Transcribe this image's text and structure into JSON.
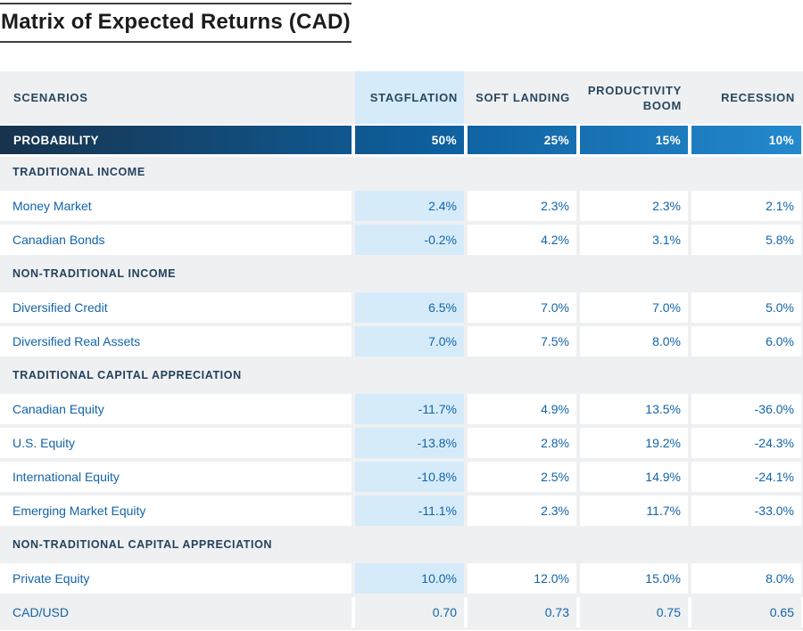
{
  "title": "Matrix of Expected Returns (CAD)",
  "colors": {
    "navy_text": "#28475f",
    "data_blue_text": "#1264a9",
    "highlight_light_blue": "#d6ebf9",
    "band_gray": "#eff0f2",
    "probability_gradient_start": "#17334d",
    "probability_gradient_end": "#2489cd",
    "title_rule": "#3f3f3f"
  },
  "table": {
    "header": {
      "scenarios_label": "SCENARIOS",
      "columns": [
        "STAGFLATION",
        "SOFT LANDING",
        "PRODUCTIVITY BOOM",
        "RECESSION"
      ]
    },
    "probability": {
      "label": "PROBABILITY",
      "values": [
        "50%",
        "25%",
        "15%",
        "10%"
      ]
    },
    "sections": [
      {
        "name": "TRADITIONAL INCOME",
        "rows": [
          {
            "label": "Money Market",
            "values": [
              "2.4%",
              "2.3%",
              "2.3%",
              "2.1%"
            ]
          },
          {
            "label": "Canadian Bonds",
            "values": [
              "-0.2%",
              "4.2%",
              "3.1%",
              "5.8%"
            ]
          }
        ]
      },
      {
        "name": "NON-TRADITIONAL INCOME",
        "rows": [
          {
            "label": "Diversified Credit",
            "values": [
              "6.5%",
              "7.0%",
              "7.0%",
              "5.0%"
            ]
          },
          {
            "label": "Diversified Real Assets",
            "values": [
              "7.0%",
              "7.5%",
              "8.0%",
              "6.0%"
            ]
          }
        ]
      },
      {
        "name": "TRADITIONAL CAPITAL APPRECIATION",
        "rows": [
          {
            "label": "Canadian Equity",
            "values": [
              "-11.7%",
              "4.9%",
              "13.5%",
              "-36.0%"
            ]
          },
          {
            "label": "U.S. Equity",
            "values": [
              "-13.8%",
              "2.8%",
              "19.2%",
              "-24.3%"
            ]
          },
          {
            "label": "International Equity",
            "values": [
              "-10.8%",
              "2.5%",
              "14.9%",
              "-24.1%"
            ]
          },
          {
            "label": "Emerging Market Equity",
            "values": [
              "-11.1%",
              "2.3%",
              "11.7%",
              "-33.0%"
            ]
          }
        ]
      },
      {
        "name": "NON-TRADITIONAL CAPITAL APPRECIATION",
        "rows": [
          {
            "label": "Private Equity",
            "values": [
              "10.0%",
              "12.0%",
              "15.0%",
              "8.0%"
            ]
          },
          {
            "label": "CAD/USD",
            "values": [
              "0.70",
              "0.73",
              "0.75",
              "0.65"
            ]
          }
        ]
      }
    ]
  },
  "chart_data": {
    "type": "table",
    "title": "Matrix of Expected Returns (CAD)",
    "columns": [
      "STAGFLATION",
      "SOFT LANDING",
      "PRODUCTIVITY BOOM",
      "RECESSION"
    ],
    "probability_pct": [
      50,
      25,
      15,
      10
    ],
    "sections": [
      {
        "name": "TRADITIONAL INCOME",
        "rows": [
          {
            "label": "Money Market",
            "returns_pct": [
              2.4,
              2.3,
              2.3,
              2.1
            ]
          },
          {
            "label": "Canadian Bonds",
            "returns_pct": [
              -0.2,
              4.2,
              3.1,
              5.8
            ]
          }
        ]
      },
      {
        "name": "NON-TRADITIONAL INCOME",
        "rows": [
          {
            "label": "Diversified Credit",
            "returns_pct": [
              6.5,
              7.0,
              7.0,
              5.0
            ]
          },
          {
            "label": "Diversified Real Assets",
            "returns_pct": [
              7.0,
              7.5,
              8.0,
              6.0
            ]
          }
        ]
      },
      {
        "name": "TRADITIONAL CAPITAL APPRECIATION",
        "rows": [
          {
            "label": "Canadian Equity",
            "returns_pct": [
              -11.7,
              4.9,
              13.5,
              -36.0
            ]
          },
          {
            "label": "U.S. Equity",
            "returns_pct": [
              -13.8,
              2.8,
              19.2,
              -24.3
            ]
          },
          {
            "label": "International Equity",
            "returns_pct": [
              -10.8,
              2.5,
              14.9,
              -24.1
            ]
          },
          {
            "label": "Emerging Market Equity",
            "returns_pct": [
              -11.1,
              2.3,
              11.7,
              -33.0
            ]
          }
        ]
      },
      {
        "name": "NON-TRADITIONAL CAPITAL APPRECIATION",
        "rows": [
          {
            "label": "Private Equity",
            "returns_pct": [
              10.0,
              12.0,
              15.0,
              8.0
            ]
          },
          {
            "label": "CAD/USD",
            "values": [
              0.7,
              0.73,
              0.75,
              0.65
            ]
          }
        ]
      }
    ]
  }
}
